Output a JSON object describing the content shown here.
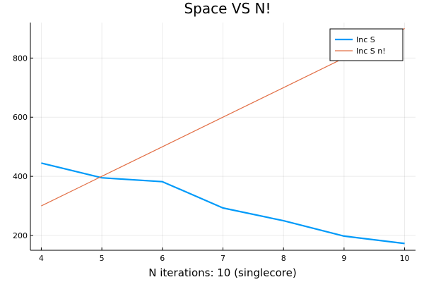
{
  "chart_data": {
    "type": "line",
    "title": "Space VS N!",
    "xlabel": "N iterations: 10 (singlecore)",
    "ylabel": "",
    "x": [
      4,
      5,
      6,
      7,
      8,
      9,
      10
    ],
    "xlim": [
      3.82,
      10.18
    ],
    "ylim": [
      150,
      920
    ],
    "xticks": [
      4,
      5,
      6,
      7,
      8,
      9,
      10
    ],
    "yticks": [
      200,
      400,
      600,
      800
    ],
    "grid": true,
    "legend_position": "top-right",
    "series": [
      {
        "name": "Inc S",
        "color": "#009af9",
        "values": [
          445,
          395,
          382,
          293,
          250,
          198,
          173
        ]
      },
      {
        "name": "Inc S n!",
        "color": "#e26f46",
        "values": [
          300,
          400,
          500,
          600,
          700,
          800,
          900
        ]
      }
    ]
  }
}
